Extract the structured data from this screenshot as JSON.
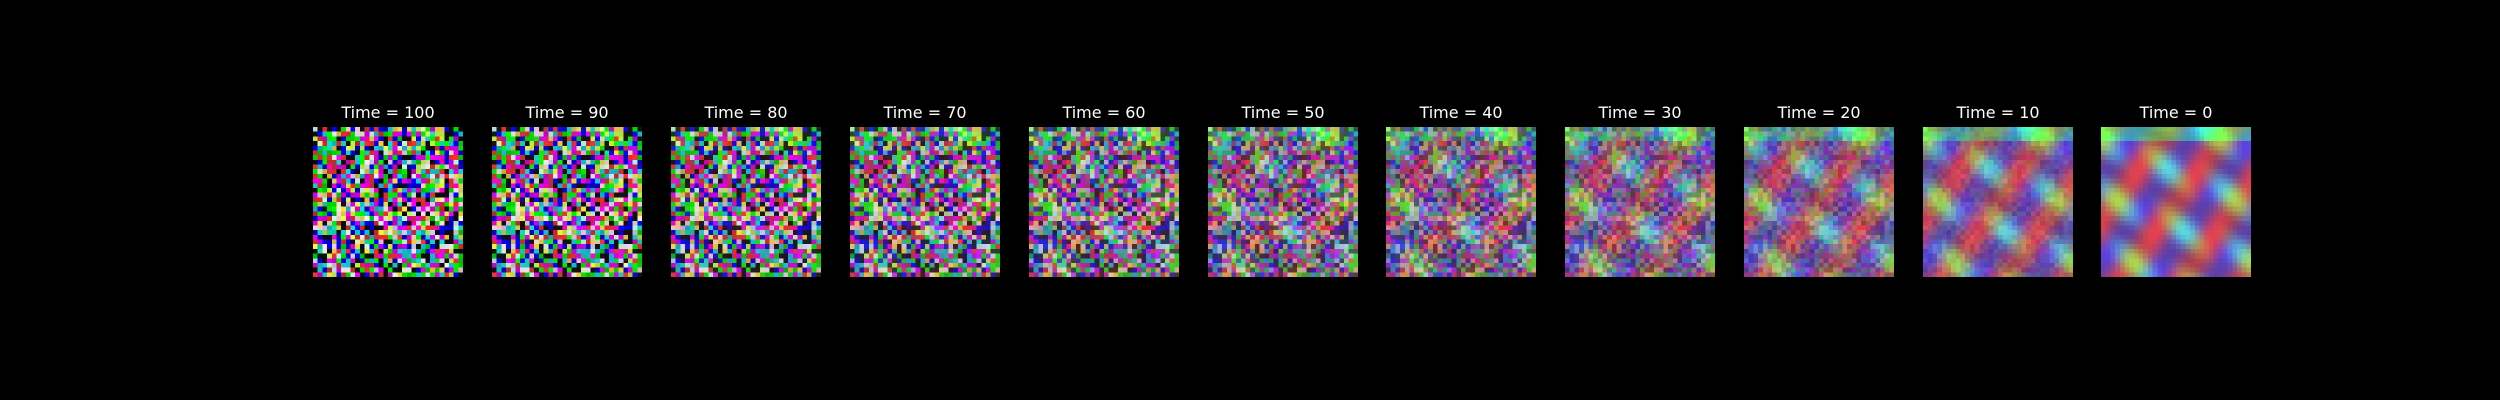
{
  "figure": {
    "background": "#000000",
    "text_color": "#ffffff",
    "panels": [
      {
        "title": "Time = 100",
        "noise_level": 1.0
      },
      {
        "title": "Time = 90",
        "noise_level": 0.9
      },
      {
        "title": "Time = 80",
        "noise_level": 0.8
      },
      {
        "title": "Time = 70",
        "noise_level": 0.7
      },
      {
        "title": "Time = 60",
        "noise_level": 0.6
      },
      {
        "title": "Time = 50",
        "noise_level": 0.5
      },
      {
        "title": "Time = 40",
        "noise_level": 0.4
      },
      {
        "title": "Time = 30",
        "noise_level": 0.3
      },
      {
        "title": "Time = 20",
        "noise_level": 0.2
      },
      {
        "title": "Time = 10",
        "noise_level": 0.1
      },
      {
        "title": "Time = 0",
        "noise_level": 0.0
      }
    ]
  }
}
